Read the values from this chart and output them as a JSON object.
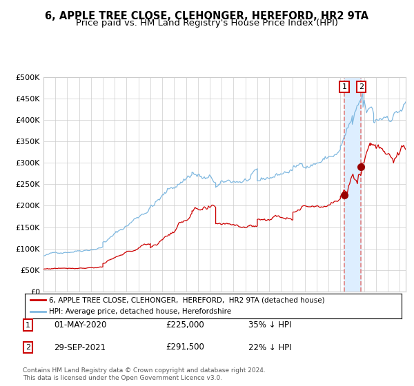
{
  "title": "6, APPLE TREE CLOSE, CLEHONGER, HEREFORD, HR2 9TA",
  "subtitle": "Price paid vs. HM Land Registry's House Price Index (HPI)",
  "title_fontsize": 10.5,
  "subtitle_fontsize": 9.5,
  "ylim": [
    0,
    500000
  ],
  "yticks": [
    0,
    50000,
    100000,
    150000,
    200000,
    250000,
    300000,
    350000,
    400000,
    450000,
    500000
  ],
  "ytick_labels": [
    "£0",
    "£50K",
    "£100K",
    "£150K",
    "£200K",
    "£250K",
    "£300K",
    "£350K",
    "£400K",
    "£450K",
    "£500K"
  ],
  "hpi_color": "#7fb8e0",
  "price_color": "#cc0000",
  "marker_color": "#990000",
  "vline_color": "#e08080",
  "vband_color": "#ddeeff",
  "grid_color": "#cccccc",
  "background_color": "#ffffff",
  "legend_label1": "6, APPLE TREE CLOSE, CLEHONGER,  HEREFORD,  HR2 9TA (detached house)",
  "legend_label2": "HPI: Average price, detached house, Herefordshire",
  "purchase1_date": 2020.33,
  "purchase1_price": 225000,
  "purchase2_date": 2021.75,
  "purchase2_price": 291500,
  "table_row1": [
    "1",
    "01-MAY-2020",
    "£225,000",
    "35% ↓ HPI"
  ],
  "table_row2": [
    "2",
    "29-SEP-2021",
    "£291,500",
    "22% ↓ HPI"
  ],
  "footnote": "Contains HM Land Registry data © Crown copyright and database right 2024.\nThis data is licensed under the Open Government Licence v3.0.",
  "xstart": 1995.0,
  "xend": 2025.5
}
